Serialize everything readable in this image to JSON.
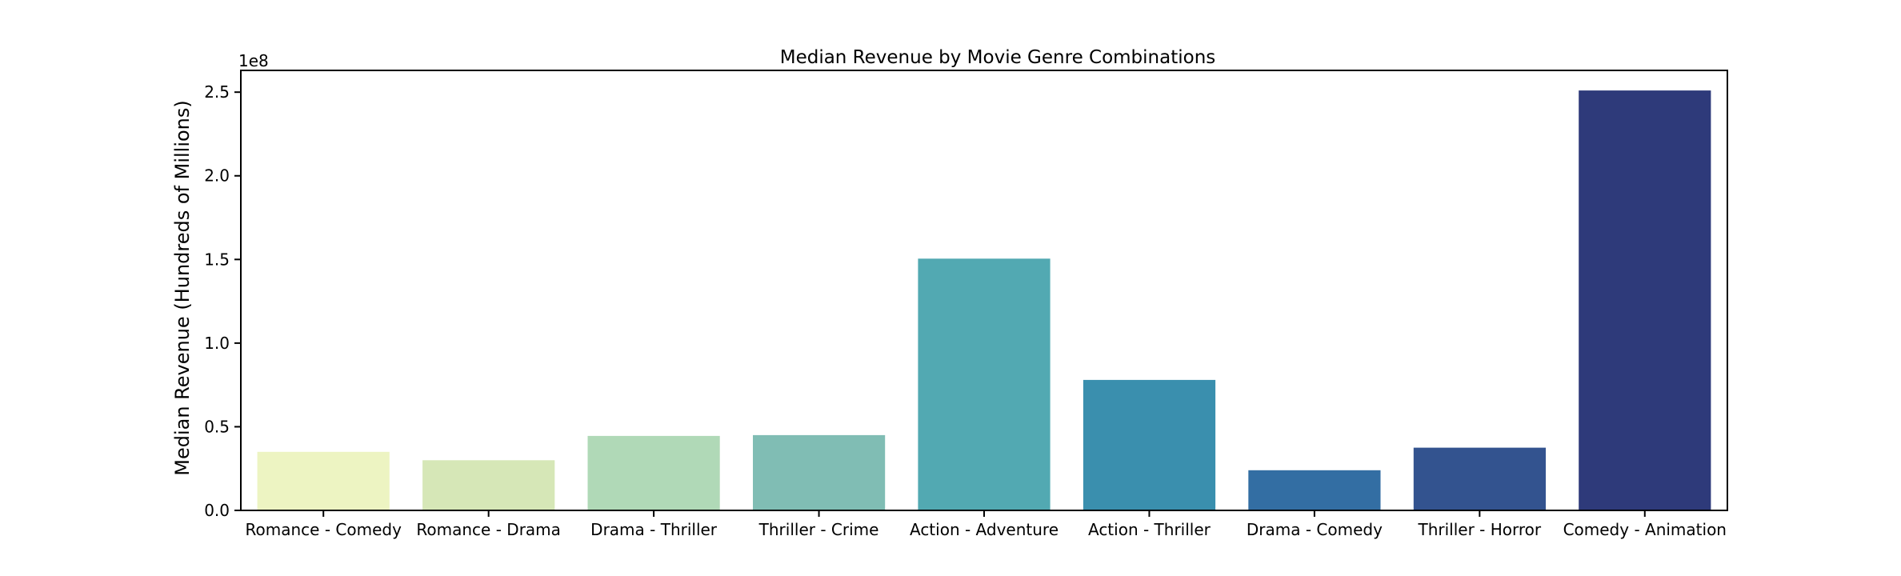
{
  "chart_data": {
    "type": "bar",
    "title": "Median Revenue by Movie Genre Combinations",
    "xlabel": "",
    "ylabel": "Median Revenue (Hundreds of Millions)",
    "y_offset_label": "1e8",
    "ylim": [
      0,
      2.63
    ],
    "yticks": [
      0.0,
      0.5,
      1.0,
      1.5,
      2.0,
      2.5
    ],
    "ytick_labels": [
      "0.0",
      "0.5",
      "1.0",
      "1.5",
      "2.0",
      "2.5"
    ],
    "grid": false,
    "categories": [
      "Romance - Comedy",
      "Romance - Drama",
      "Drama - Thriller",
      "Thriller - Crime",
      "Action - Adventure",
      "Action - Thriller",
      "Drama - Comedy",
      "Thriller - Horror",
      "Comedy - Animation"
    ],
    "values": [
      0.35,
      0.3,
      0.445,
      0.45,
      1.505,
      0.78,
      0.24,
      0.375,
      2.51
    ],
    "colors": [
      "#edf4c2",
      "#d6e7b7",
      "#b0d9b7",
      "#80bdb4",
      "#52a9b2",
      "#3a8fae",
      "#336ea3",
      "#33538f",
      "#2e3a7a"
    ]
  }
}
